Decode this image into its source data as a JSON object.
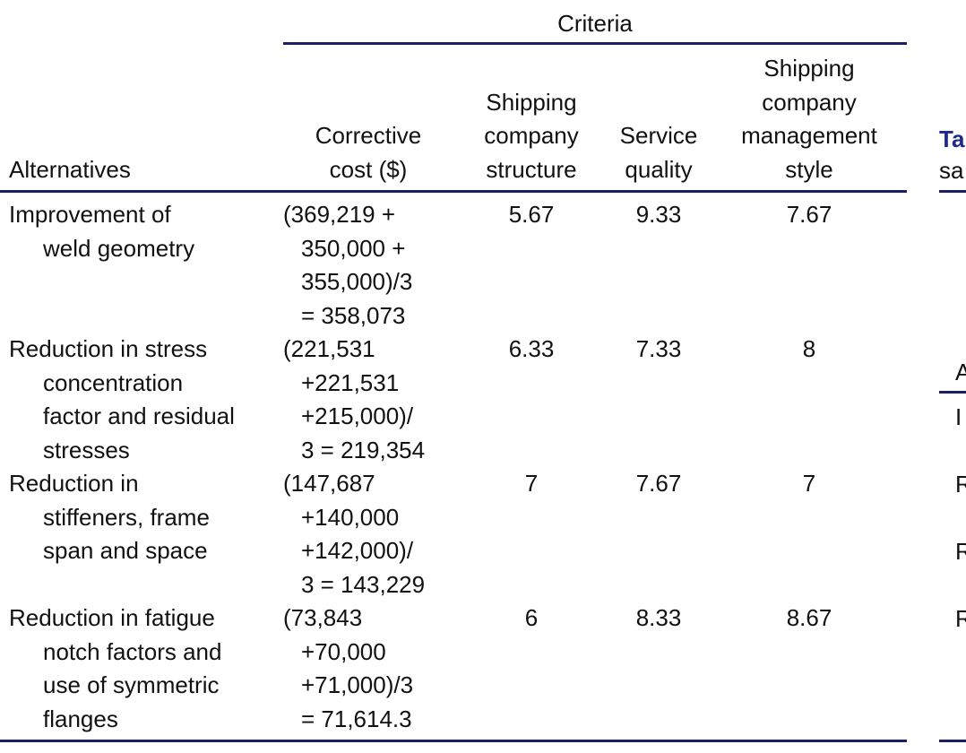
{
  "spanner": "Criteria",
  "headers": {
    "alternatives": [
      "Alternatives"
    ],
    "cost": [
      "Corrective",
      "cost ($)"
    ],
    "structure": [
      "Shipping",
      "company",
      "structure"
    ],
    "quality": [
      "Service",
      "quality"
    ],
    "style": [
      "Shipping",
      "company",
      "management",
      "style"
    ]
  },
  "rows": [
    {
      "alt": [
        "Improvement of",
        "weld geometry"
      ],
      "cost": [
        "(369,219 +",
        "350,000 +",
        "355,000)/3",
        "= 358,073"
      ],
      "structure": "5.67",
      "quality": "9.33",
      "style": "7.67"
    },
    {
      "alt": [
        "Reduction in stress",
        "concentration",
        "factor and residual",
        "stresses"
      ],
      "cost": [
        "(221,531",
        "+221,531",
        "+215,000)/",
        "3 = 219,354"
      ],
      "structure": "6.33",
      "quality": "7.33",
      "style": "8"
    },
    {
      "alt": [
        "Reduction in",
        "stiffeners, frame",
        "span and space"
      ],
      "cost": [
        "(147,687",
        "+140,000",
        "+142,000)/",
        "3 = 143,229"
      ],
      "structure": "7",
      "quality": "7.67",
      "style": "7"
    },
    {
      "alt": [
        "Reduction in fatigue",
        "notch factors and",
        "use of symmetric",
        "flanges"
      ],
      "cost": [
        "(73,843",
        "+70,000",
        "+71,000)/3",
        "= 71,614.3"
      ],
      "structure": "6",
      "quality": "8.33",
      "style": "8.67"
    }
  ],
  "next_table": {
    "title_fragment": "Ta",
    "caption_fragment": "sa",
    "header_fragment": "A",
    "row_fragments": [
      "I",
      "R",
      "R",
      "R"
    ]
  }
}
